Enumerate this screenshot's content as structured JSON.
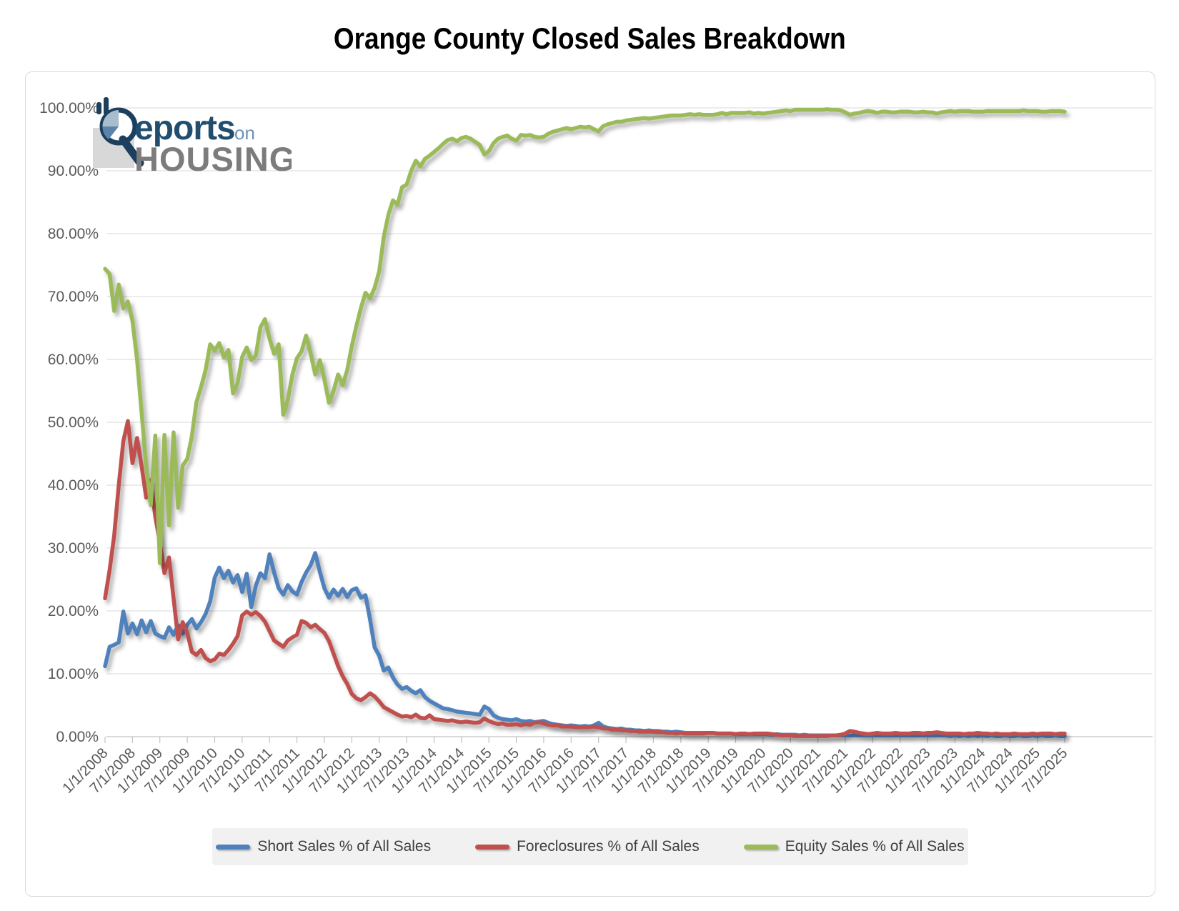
{
  "title": "Orange County Closed Sales Breakdown",
  "logo": {
    "reports": "eports",
    "on": "on",
    "housing": "HOUSING"
  },
  "y_axis": {
    "labels": [
      "100.00%",
      "90.00%",
      "80.00%",
      "70.00%",
      "60.00%",
      "50.00%",
      "40.00%",
      "30.00%",
      "20.00%",
      "10.00%",
      "0.00%"
    ]
  },
  "x_axis": {
    "labels": [
      "1/1/2008",
      "7/1/2008",
      "1/1/2009",
      "7/1/2009",
      "1/1/2010",
      "7/1/2010",
      "1/1/2011",
      "7/1/2011",
      "1/1/2012",
      "7/1/2012",
      "1/1/2013",
      "7/1/2013",
      "1/1/2014",
      "7/1/2014",
      "1/1/2015",
      "7/1/2015",
      "1/1/2016",
      "7/1/2016",
      "1/1/2017",
      "7/1/2017",
      "1/1/2018",
      "7/1/2018",
      "1/1/2019",
      "7/1/2019",
      "1/1/2020",
      "7/1/2020",
      "1/1/2021",
      "7/1/2021",
      "1/1/2022",
      "7/1/2022",
      "1/1/2023",
      "7/1/2023",
      "1/1/2024",
      "7/1/2024",
      "1/1/2025",
      "7/1/2025"
    ]
  },
  "chart_data": {
    "type": "line",
    "title": "Orange County Closed Sales Breakdown",
    "x_start": "1/1/2008",
    "x_end": "7/1/2025",
    "x_frequency": "monthly",
    "n_points": 211,
    "ylim": [
      0,
      100
    ],
    "y_tick_step": 10,
    "grid": "horizontal",
    "legend_position": "bottom",
    "series": [
      {
        "id": "short-sales",
        "name": "Short Sales % of All Sales",
        "color": "#4F81BD",
        "values": [
          11.2,
          14.3,
          14.6,
          15.0,
          19.9,
          16.4,
          18.0,
          16.3,
          18.5,
          16.6,
          18.4,
          16.4,
          16.0,
          15.7,
          17.4,
          16.2,
          17.7,
          16.4,
          17.8,
          18.7,
          17.2,
          18.2,
          19.5,
          21.5,
          25.3,
          26.9,
          25.2,
          26.4,
          24.5,
          25.7,
          23.0,
          25.9,
          20.6,
          24.0,
          26.0,
          25.2,
          29.0,
          26.1,
          23.6,
          22.6,
          24.1,
          23.1,
          22.6,
          24.6,
          26.1,
          27.3,
          29.2,
          26.2,
          23.6,
          22.1,
          23.4,
          22.4,
          23.5,
          22.2,
          23.3,
          23.6,
          22.1,
          22.5,
          18.6,
          14.2,
          12.9,
          10.5,
          11.0,
          9.4,
          8.3,
          7.6,
          7.9,
          7.3,
          6.9,
          7.4,
          6.3,
          5.7,
          5.3,
          4.9,
          4.5,
          4.4,
          4.2,
          4.0,
          3.9,
          3.8,
          3.7,
          3.6,
          3.5,
          4.8,
          4.4,
          3.4,
          3.0,
          2.8,
          2.7,
          2.6,
          2.8,
          2.5,
          2.4,
          2.5,
          2.3,
          2.4,
          2.5,
          2.2,
          2.0,
          1.9,
          1.8,
          1.7,
          1.8,
          1.7,
          1.6,
          1.7,
          1.6,
          1.8,
          2.2,
          1.6,
          1.4,
          1.3,
          1.2,
          1.3,
          1.1,
          1.1,
          1.0,
          1.0,
          0.9,
          1.0,
          0.9,
          0.9,
          0.8,
          0.8,
          0.7,
          0.8,
          0.7,
          0.6,
          0.6,
          0.6,
          0.6,
          0.6,
          0.6,
          0.6,
          0.5,
          0.5,
          0.5,
          0.5,
          0.4,
          0.4,
          0.4,
          0.4,
          0.4,
          0.4,
          0.4,
          0.4,
          0.3,
          0.4,
          0.3,
          0.3,
          0.3,
          0.3,
          0.2,
          0.3,
          0.2,
          0.2,
          0.2,
          0.2,
          0.2,
          0.2,
          0.2,
          0.2,
          0.2,
          0.2,
          0.2,
          0.2,
          0.2,
          0.2,
          0.2,
          0.2,
          0.2,
          0.2,
          0.2,
          0.2,
          0.2,
          0.2,
          0.2,
          0.2,
          0.2,
          0.2,
          0.2,
          0.2,
          0.2,
          0.2,
          0.2,
          0.1,
          0.2,
          0.1,
          0.2,
          0.1,
          0.2,
          0.1,
          0.2,
          0.1,
          0.2,
          0.1,
          0.1,
          0.2,
          0.1,
          0.1,
          0.2,
          0.1,
          0.1,
          0.2,
          0.1,
          0.2,
          0.1,
          0.1,
          0.2,
          0.1,
          0.1
        ]
      },
      {
        "id": "foreclosures",
        "name": "Foreclosures % of All Sales",
        "color": "#C0504D",
        "values": [
          22.0,
          26.5,
          32.0,
          40.0,
          47.0,
          50.2,
          43.5,
          47.5,
          43.0,
          38.0,
          40.8,
          35.0,
          31.0,
          26.0,
          28.5,
          22.0,
          15.5,
          18.2,
          16.5,
          13.5,
          13.0,
          13.8,
          12.5,
          12.0,
          12.3,
          13.2,
          13.0,
          13.8,
          14.8,
          16.0,
          19.3,
          19.9,
          19.4,
          19.8,
          19.2,
          18.3,
          16.8,
          15.3,
          14.8,
          14.3,
          15.3,
          15.8,
          16.2,
          18.4,
          18.1,
          17.4,
          17.8,
          17.1,
          16.5,
          15.2,
          13.2,
          11.2,
          9.6,
          8.4,
          6.8,
          6.1,
          5.8,
          6.3,
          6.9,
          6.4,
          5.6,
          4.7,
          4.3,
          3.9,
          3.5,
          3.2,
          3.3,
          3.1,
          3.5,
          3.0,
          2.9,
          3.4,
          2.8,
          2.7,
          2.6,
          2.5,
          2.6,
          2.4,
          2.3,
          2.4,
          2.3,
          2.2,
          2.3,
          2.9,
          2.5,
          2.2,
          2.0,
          2.1,
          1.9,
          1.9,
          2.0,
          1.8,
          2.0,
          1.9,
          2.2,
          2.3,
          2.1,
          1.9,
          1.8,
          1.8,
          1.6,
          1.6,
          1.6,
          1.5,
          1.5,
          1.5,
          1.5,
          1.6,
          1.5,
          1.3,
          1.3,
          1.1,
          1.1,
          1.0,
          1.0,
          0.9,
          0.9,
          0.8,
          0.8,
          0.8,
          0.8,
          0.7,
          0.7,
          0.6,
          0.6,
          0.5,
          0.6,
          0.5,
          0.5,
          0.5,
          0.5,
          0.5,
          0.6,
          0.6,
          0.5,
          0.5,
          0.5,
          0.5,
          0.4,
          0.5,
          0.5,
          0.4,
          0.5,
          0.5,
          0.5,
          0.5,
          0.4,
          0.3,
          0.2,
          0.2,
          0.2,
          0.1,
          0.1,
          0.1,
          0.1,
          0.1,
          0.1,
          0.1,
          0.1,
          0.2,
          0.2,
          0.3,
          0.5,
          0.9,
          0.8,
          0.6,
          0.5,
          0.4,
          0.5,
          0.6,
          0.5,
          0.5,
          0.5,
          0.6,
          0.5,
          0.5,
          0.5,
          0.6,
          0.6,
          0.5,
          0.6,
          0.6,
          0.7,
          0.6,
          0.5,
          0.5,
          0.5,
          0.5,
          0.4,
          0.5,
          0.5,
          0.6,
          0.5,
          0.5,
          0.4,
          0.5,
          0.4,
          0.4,
          0.4,
          0.5,
          0.4,
          0.4,
          0.4,
          0.5,
          0.4,
          0.5,
          0.5,
          0.5,
          0.4,
          0.5,
          0.5
        ]
      },
      {
        "id": "equity-sales",
        "name": "Equity Sales % of All Sales",
        "color": "#9BBB59",
        "values": [
          74.4,
          73.6,
          67.7,
          71.9,
          68.1,
          69.2,
          66.1,
          60.0,
          51.5,
          43.0,
          36.8,
          47.9,
          27.6,
          48.0,
          33.6,
          48.4,
          36.4,
          43.1,
          44.2,
          47.8,
          53.2,
          55.6,
          58.3,
          62.4,
          61.4,
          62.6,
          60.3,
          61.5,
          54.6,
          56.2,
          60.4,
          61.9,
          59.9,
          60.6,
          65.1,
          66.4,
          63.3,
          60.9,
          62.4,
          51.2,
          53.6,
          57.6,
          60.2,
          61.3,
          63.8,
          60.9,
          57.6,
          59.9,
          56.8,
          53.1,
          55.0,
          57.6,
          55.9,
          58.3,
          62.1,
          65.3,
          68.2,
          70.6,
          69.7,
          71.4,
          74.0,
          79.5,
          83.0,
          85.3,
          84.6,
          87.4,
          87.8,
          90.0,
          91.6,
          90.7,
          91.9,
          92.4,
          93.0,
          93.6,
          94.3,
          94.9,
          95.1,
          94.7,
          95.2,
          95.4,
          95.1,
          94.6,
          94.1,
          92.6,
          93.1,
          94.4,
          95.1,
          95.4,
          95.6,
          95.1,
          94.8,
          95.7,
          95.6,
          95.7,
          95.4,
          95.3,
          95.4,
          95.9,
          96.2,
          96.4,
          96.6,
          96.8,
          96.6,
          96.8,
          97.0,
          96.9,
          97.0,
          96.6,
          96.3,
          97.1,
          97.4,
          97.6,
          97.8,
          97.8,
          98.0,
          98.1,
          98.2,
          98.3,
          98.4,
          98.3,
          98.4,
          98.5,
          98.6,
          98.7,
          98.8,
          98.8,
          98.8,
          98.9,
          99.0,
          98.9,
          99.0,
          98.9,
          98.9,
          98.9,
          99.0,
          99.2,
          99.0,
          99.2,
          99.2,
          99.2,
          99.2,
          99.3,
          99.1,
          99.2,
          99.1,
          99.2,
          99.3,
          99.4,
          99.5,
          99.6,
          99.5,
          99.7,
          99.7,
          99.7,
          99.7,
          99.7,
          99.7,
          99.7,
          99.8,
          99.7,
          99.7,
          99.6,
          99.3,
          98.9,
          99.1,
          99.2,
          99.4,
          99.5,
          99.4,
          99.2,
          99.4,
          99.4,
          99.3,
          99.3,
          99.4,
          99.4,
          99.4,
          99.3,
          99.3,
          99.4,
          99.3,
          99.3,
          99.1,
          99.3,
          99.4,
          99.5,
          99.4,
          99.5,
          99.5,
          99.5,
          99.4,
          99.4,
          99.4,
          99.5,
          99.5,
          99.5,
          99.5,
          99.5,
          99.5,
          99.5,
          99.5,
          99.6,
          99.5,
          99.5,
          99.5,
          99.4,
          99.4,
          99.5,
          99.5,
          99.5,
          99.4
        ]
      }
    ]
  }
}
